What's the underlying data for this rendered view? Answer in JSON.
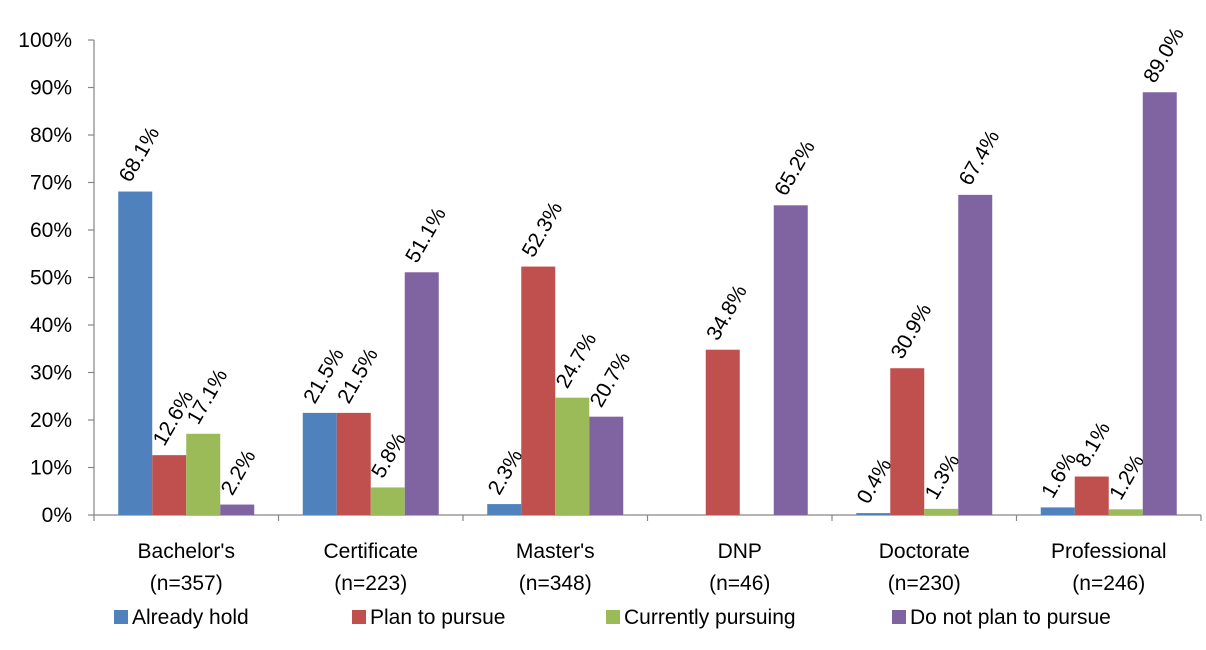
{
  "chart_data": {
    "type": "bar",
    "categories": [
      [
        "Bachelor's",
        "(n=357)"
      ],
      [
        "Certificate",
        "(n=223)"
      ],
      [
        "Master's",
        "(n=348)"
      ],
      [
        "DNP",
        "(n=46)"
      ],
      [
        "Doctorate",
        "(n=230)"
      ],
      [
        "Professional",
        "(n=246)"
      ]
    ],
    "series": [
      {
        "name": "Already hold",
        "color": "#4F81BD",
        "values": [
          68.1,
          21.5,
          2.3,
          0,
          0.4,
          1.6
        ],
        "labels": [
          "68.1%",
          "21.5%",
          "2.3%",
          null,
          "0.4%",
          "1.6%"
        ]
      },
      {
        "name": "Plan to pursue",
        "color": "#C0504D",
        "values": [
          12.6,
          21.5,
          52.3,
          34.8,
          30.9,
          8.1
        ],
        "labels": [
          "12.6%",
          "21.5%",
          "52.3%",
          "34.8%",
          "30.9%",
          "8.1%"
        ]
      },
      {
        "name": "Currently pursuing",
        "color": "#9BBB59",
        "values": [
          17.1,
          5.8,
          24.7,
          0,
          1.3,
          1.2
        ],
        "labels": [
          "17.1%",
          "5.8%",
          "24.7%",
          null,
          "1.3%",
          "1.2%"
        ]
      },
      {
        "name": "Do not plan to pursue",
        "color": "#8064A2",
        "values": [
          2.2,
          51.1,
          20.7,
          65.2,
          67.4,
          89.0
        ],
        "labels": [
          "2.2%",
          "51.1%",
          "20.7%",
          "65.2%",
          "67.4%",
          "89.0%"
        ]
      }
    ],
    "ylim": [
      0,
      100
    ],
    "yticks": [
      "0%",
      "10%",
      "20%",
      "30%",
      "40%",
      "50%",
      "60%",
      "70%",
      "80%",
      "90%",
      "100%"
    ],
    "grid": false,
    "legend": "bottom",
    "title": "",
    "xlabel": "",
    "ylabel": ""
  }
}
